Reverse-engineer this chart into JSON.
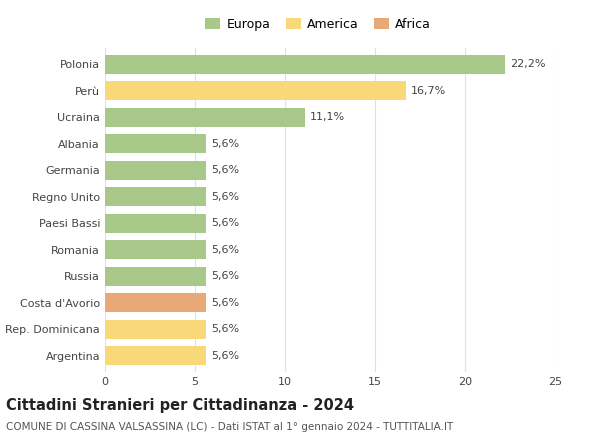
{
  "categories": [
    "Polonia",
    "Perù",
    "Ucraina",
    "Albania",
    "Germania",
    "Regno Unito",
    "Paesi Bassi",
    "Romania",
    "Russia",
    "Costa d'Avorio",
    "Rep. Dominicana",
    "Argentina"
  ],
  "values": [
    22.2,
    16.7,
    11.1,
    5.6,
    5.6,
    5.6,
    5.6,
    5.6,
    5.6,
    5.6,
    5.6,
    5.6
  ],
  "labels": [
    "22,2%",
    "16,7%",
    "11,1%",
    "5,6%",
    "5,6%",
    "5,6%",
    "5,6%",
    "5,6%",
    "5,6%",
    "5,6%",
    "5,6%",
    "5,6%"
  ],
  "continents": [
    "Europa",
    "America",
    "Europa",
    "Europa",
    "Europa",
    "Europa",
    "Europa",
    "Europa",
    "Europa",
    "Africa",
    "America",
    "America"
  ],
  "colors": {
    "Europa": "#a8c88a",
    "America": "#f8d878",
    "Africa": "#e8a878"
  },
  "xlim": [
    0,
    25
  ],
  "xticks": [
    0,
    5,
    10,
    15,
    20,
    25
  ],
  "title": "Cittadini Stranieri per Cittadinanza - 2024",
  "subtitle": "COMUNE DI CASSINA VALSASSINA (LC) - Dati ISTAT al 1° gennaio 2024 - TUTTITALIA.IT",
  "background_color": "#ffffff",
  "grid_color": "#e0e0e0",
  "bar_height": 0.72,
  "label_fontsize": 8,
  "tick_fontsize": 8,
  "title_fontsize": 10.5,
  "subtitle_fontsize": 7.5,
  "legend_fontsize": 9
}
